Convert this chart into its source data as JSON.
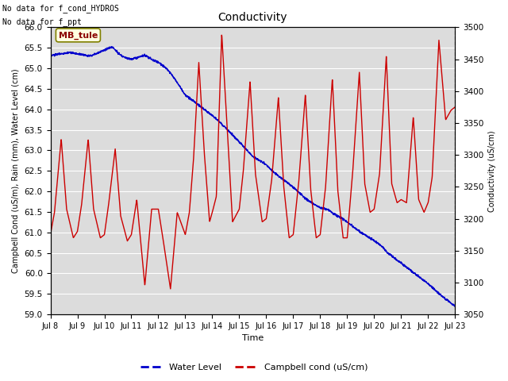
{
  "title": "Conductivity",
  "xlabel": "Time",
  "ylabel_left": "Campbell Cond (uS/m), Rain (mm), Water Level (cm)",
  "ylabel_right": "Conductivity (uS/cm)",
  "text_top_left_line1": "No data for f_cond_HYDROS",
  "text_top_left_line2": "No data for f_ppt",
  "annotation_box": "MB_tule",
  "ylim_left": [
    59.0,
    66.0
  ],
  "ylim_right": [
    3050,
    3500
  ],
  "plot_bg_color": "#dcdcdc",
  "blue_color": "#0000cc",
  "red_color": "#cc0000",
  "legend_items": [
    "Water Level",
    "Campbell cond (uS/cm)"
  ],
  "xtick_labels": [
    "Jul 8",
    "Jul 9",
    "Jul 10",
    "Jul 11",
    "Jul 12",
    "Jul 13",
    "Jul 14",
    "Jul 15",
    "Jul 16",
    "Jul 17",
    "Jul 18",
    "Jul 19",
    "Jul 20",
    "Jul 21",
    "Jul 22",
    "Jul 23"
  ],
  "yticks_left": [
    59.0,
    59.5,
    60.0,
    60.5,
    61.0,
    61.5,
    62.0,
    62.5,
    63.0,
    63.5,
    64.0,
    64.5,
    65.0,
    65.5,
    66.0
  ],
  "yticks_right": [
    3050,
    3100,
    3150,
    3200,
    3250,
    3300,
    3350,
    3400,
    3450,
    3500
  ],
  "blue_pts_t": [
    0,
    0.3,
    0.7,
    1.0,
    1.5,
    2.0,
    2.3,
    2.5,
    2.7,
    3.0,
    3.3,
    3.5,
    3.8,
    4.0,
    4.3,
    4.5,
    4.8,
    5.0,
    5.5,
    6.0,
    6.5,
    7.0,
    7.5,
    8.0,
    8.3,
    8.5,
    8.8,
    9.0,
    9.5,
    10.0,
    10.3,
    10.5,
    10.8,
    11.0,
    11.5,
    12.0,
    12.3,
    12.5,
    13.0,
    13.5,
    14.0,
    14.5,
    15.0
  ],
  "blue_pts_y": [
    65.3,
    65.35,
    65.38,
    65.35,
    65.3,
    65.45,
    65.52,
    65.38,
    65.28,
    65.22,
    65.28,
    65.32,
    65.2,
    65.15,
    65.0,
    64.85,
    64.55,
    64.35,
    64.1,
    63.85,
    63.55,
    63.2,
    62.85,
    62.65,
    62.45,
    62.35,
    62.2,
    62.1,
    61.8,
    61.6,
    61.55,
    61.45,
    61.35,
    61.25,
    61.0,
    60.8,
    60.65,
    60.5,
    60.25,
    60.0,
    59.75,
    59.45,
    59.2
  ],
  "red_pts_t": [
    0.0,
    0.15,
    0.4,
    0.6,
    0.85,
    1.0,
    1.15,
    1.4,
    1.6,
    1.85,
    2.0,
    2.15,
    2.4,
    2.6,
    2.85,
    3.0,
    3.2,
    3.5,
    3.75,
    4.0,
    4.15,
    4.45,
    4.7,
    5.0,
    5.15,
    5.3,
    5.5,
    5.7,
    5.9,
    6.0,
    6.15,
    6.35,
    6.55,
    6.75,
    7.0,
    7.15,
    7.4,
    7.6,
    7.85,
    8.0,
    8.2,
    8.45,
    8.65,
    8.85,
    9.0,
    9.2,
    9.45,
    9.65,
    9.85,
    10.0,
    10.2,
    10.45,
    10.65,
    10.85,
    11.0,
    11.2,
    11.45,
    11.65,
    11.85,
    12.0,
    12.2,
    12.45,
    12.65,
    12.85,
    13.0,
    13.2,
    13.45,
    13.65,
    13.85,
    14.0,
    14.15,
    14.4,
    14.65,
    14.85,
    15.0
  ],
  "red_pts_y": [
    3175,
    3210,
    3325,
    3215,
    3170,
    3180,
    3220,
    3325,
    3215,
    3170,
    3175,
    3220,
    3310,
    3205,
    3165,
    3175,
    3230,
    3095,
    3215,
    3215,
    3175,
    3090,
    3210,
    3175,
    3210,
    3290,
    3445,
    3305,
    3195,
    3210,
    3235,
    3490,
    3345,
    3195,
    3215,
    3275,
    3415,
    3270,
    3195,
    3200,
    3260,
    3390,
    3250,
    3170,
    3175,
    3255,
    3395,
    3245,
    3170,
    3175,
    3250,
    3420,
    3245,
    3170,
    3170,
    3270,
    3430,
    3255,
    3210,
    3215,
    3270,
    3455,
    3255,
    3225,
    3230,
    3225,
    3360,
    3230,
    3210,
    3225,
    3265,
    3480,
    3355,
    3370,
    3375
  ]
}
